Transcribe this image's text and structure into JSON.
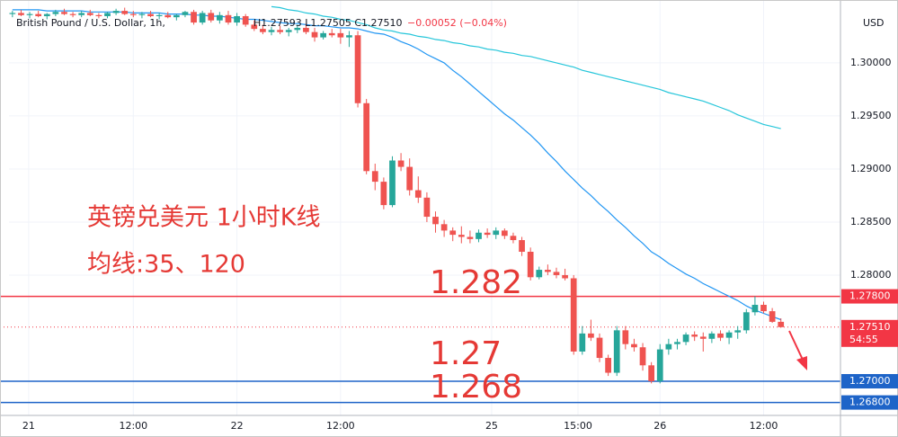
{
  "chart_data": {
    "type": "candlestick",
    "title": "British Pound / U.S. Dollar, 1h,",
    "ohlc_text": "H1.27593  L1.27505  C1.27510",
    "change_text": "−0.00052 (−0.04%)",
    "currency": "USD",
    "annotations": [
      "英镑兑美元 1小时K线",
      "均线:35、120",
      "1.282",
      "1.27",
      "1.268"
    ],
    "up_color": "#26a69a",
    "down_color": "#ef5350",
    "open": [
      1.3046,
      1.3047,
      1.3045,
      1.3046,
      1.3044,
      1.3046,
      1.3048,
      1.3046,
      1.3045,
      1.3047,
      1.3045,
      1.3044,
      1.3047,
      1.3049,
      1.3046,
      1.3045,
      1.3046,
      1.3044,
      1.3045,
      1.3043,
      1.3045,
      1.3048,
      1.3038,
      1.3047,
      1.304,
      1.3045,
      1.3038,
      1.3044,
      1.3036,
      1.3032,
      1.3029,
      1.3031,
      1.3029,
      1.3031,
      1.3033,
      1.3029,
      1.3024,
      1.3028,
      1.3028,
      1.3024,
      1.3026,
      1.2962,
      1.2898,
      1.2888,
      1.2866,
      1.2908,
      1.2902,
      1.288,
      1.2873,
      1.2855,
      1.2848,
      1.2842,
      1.2838,
      1.2836,
      1.2834,
      1.284,
      1.2838,
      1.2842,
      1.2837,
      1.2833,
      1.2822,
      1.2798,
      1.2805,
      1.2803,
      1.28,
      1.2797,
      1.2728,
      1.2745,
      1.2741,
      1.2722,
      1.2708,
      1.2748,
      1.2735,
      1.2732,
      1.2715,
      1.27,
      1.273,
      1.2735,
      1.2737,
      1.2744,
      1.2742,
      1.274,
      1.2745,
      1.2741,
      1.2746,
      1.2748,
      1.2765,
      1.2772,
      1.2766,
      1.2756
    ],
    "high": [
      1.3049,
      1.305,
      1.3048,
      1.3049,
      1.3047,
      1.305,
      1.3051,
      1.3048,
      1.3049,
      1.305,
      1.3047,
      1.3048,
      1.3051,
      1.3052,
      1.3049,
      1.3048,
      1.3049,
      1.3047,
      1.3048,
      1.3046,
      1.3049,
      1.305,
      1.3049,
      1.305,
      1.3048,
      1.3049,
      1.3047,
      1.3046,
      1.304,
      1.3036,
      1.3034,
      1.3035,
      1.3033,
      1.3036,
      1.3037,
      1.3033,
      1.303,
      1.3032,
      1.3032,
      1.303,
      1.303,
      1.2966,
      1.2905,
      1.2892,
      1.2912,
      1.2915,
      1.291,
      1.2893,
      1.2878,
      1.286,
      1.2852,
      1.2845,
      1.2846,
      1.2842,
      1.2843,
      1.2844,
      1.2845,
      1.2844,
      1.284,
      1.2836,
      1.2826,
      1.2808,
      1.281,
      1.2807,
      1.2806,
      1.28,
      1.2752,
      1.2758,
      1.2745,
      1.2725,
      1.2752,
      1.2752,
      1.274,
      1.2736,
      1.2718,
      1.2735,
      1.274,
      1.274,
      1.2746,
      1.2747,
      1.2746,
      1.2747,
      1.2748,
      1.2748,
      1.2752,
      1.2768,
      1.278,
      1.2775,
      1.2769,
      1.27593
    ],
    "low": [
      1.3043,
      1.3044,
      1.3042,
      1.3043,
      1.3041,
      1.3044,
      1.3045,
      1.3043,
      1.3043,
      1.3044,
      1.3042,
      1.3042,
      1.3045,
      1.3045,
      1.3043,
      1.3042,
      1.3043,
      1.3041,
      1.3042,
      1.304,
      1.3043,
      1.3036,
      1.3036,
      1.3038,
      1.3037,
      1.3036,
      1.3035,
      1.3034,
      1.303,
      1.3027,
      1.3026,
      1.3027,
      1.3025,
      1.3028,
      1.3027,
      1.302,
      1.3022,
      1.3024,
      1.3018,
      1.3015,
      1.2958,
      1.2895,
      1.288,
      1.2862,
      1.2864,
      1.2898,
      1.2875,
      1.2868,
      1.285,
      1.284,
      1.2836,
      1.2832,
      1.283,
      1.283,
      1.2831,
      1.2835,
      1.2834,
      1.2834,
      1.283,
      1.2818,
      1.2795,
      1.2796,
      1.28,
      1.2797,
      1.2795,
      1.2725,
      1.2725,
      1.2738,
      1.2718,
      1.2705,
      1.2705,
      1.273,
      1.2728,
      1.271,
      1.2698,
      1.2698,
      1.2725,
      1.273,
      1.2734,
      1.2738,
      1.2728,
      1.2736,
      1.2738,
      1.2735,
      1.274,
      1.2745,
      1.2762,
      1.2764,
      1.2755,
      1.27505
    ],
    "close": [
      1.3047,
      1.3045,
      1.3046,
      1.3044,
      1.3046,
      1.3048,
      1.3046,
      1.3045,
      1.3047,
      1.3045,
      1.3044,
      1.3047,
      1.3049,
      1.3046,
      1.3045,
      1.3046,
      1.3044,
      1.3045,
      1.3043,
      1.3045,
      1.3048,
      1.3038,
      1.3047,
      1.304,
      1.3045,
      1.3038,
      1.3044,
      1.3036,
      1.3032,
      1.3029,
      1.3031,
      1.3029,
      1.3031,
      1.3033,
      1.3029,
      1.3024,
      1.3028,
      1.3026,
      1.3024,
      1.3026,
      1.2962,
      1.2898,
      1.2888,
      1.2866,
      1.2908,
      1.2902,
      1.288,
      1.2873,
      1.2855,
      1.2848,
      1.2842,
      1.2838,
      1.2836,
      1.2834,
      1.284,
      1.2838,
      1.2842,
      1.2837,
      1.2833,
      1.2822,
      1.2798,
      1.2805,
      1.2803,
      1.28,
      1.2797,
      1.2728,
      1.2745,
      1.2741,
      1.2722,
      1.2708,
      1.2748,
      1.2735,
      1.2732,
      1.2715,
      1.27,
      1.273,
      1.2735,
      1.2737,
      1.2744,
      1.2742,
      1.274,
      1.2745,
      1.2741,
      1.2746,
      1.2748,
      1.2765,
      1.2772,
      1.2766,
      1.2756,
      1.2751
    ],
    "series": [
      {
        "color": "#2196f3",
        "values": [
          1.305,
          1.305,
          1.305,
          1.305,
          1.3049,
          1.3049,
          1.3049,
          1.3049,
          1.3049,
          1.3048,
          1.3048,
          1.3048,
          1.3048,
          1.3048,
          1.3047,
          1.3047,
          1.3047,
          1.3047,
          1.3046,
          1.3046,
          1.3046,
          1.3045,
          1.3045,
          1.3044,
          1.3044,
          1.3043,
          1.3042,
          1.3041,
          1.3041,
          1.304,
          1.3039,
          1.3038,
          1.3037,
          1.3037,
          1.3036,
          1.3035,
          1.3035,
          1.3034,
          1.3033,
          1.3033,
          1.3032,
          1.303,
          1.3028,
          1.3027,
          1.3024,
          1.302,
          1.3017,
          1.3013,
          1.3008,
          1.3004,
          1.3,
          1.2993,
          1.2987,
          1.298,
          1.2973,
          1.2966,
          1.2959,
          1.2952,
          1.2946,
          1.2939,
          1.2932,
          1.2924,
          1.2915,
          1.2907,
          1.2898,
          1.289,
          1.2882,
          1.2875,
          1.2867,
          1.286,
          1.2852,
          1.2845,
          1.2837,
          1.283,
          1.2822,
          1.2817,
          1.2811,
          1.2806,
          1.2801,
          1.2797,
          1.2792,
          1.2788,
          1.2784,
          1.278,
          1.2776,
          1.2771,
          1.2767,
          1.2764,
          1.2761,
          1.2758
        ]
      },
      {
        "color": "#26c6da",
        "values": [
          null,
          null,
          null,
          null,
          null,
          null,
          null,
          null,
          null,
          null,
          null,
          null,
          null,
          null,
          null,
          null,
          null,
          null,
          null,
          null,
          null,
          null,
          null,
          null,
          null,
          null,
          null,
          null,
          null,
          null,
          1.3053,
          1.3052,
          1.305,
          1.3049,
          1.3047,
          1.3046,
          1.3044,
          1.3043,
          1.3041,
          1.304,
          1.3038,
          1.3036,
          1.3033,
          1.3031,
          1.303,
          1.3028,
          1.3027,
          1.3025,
          1.3024,
          1.3022,
          1.3021,
          1.3019,
          1.3018,
          1.3016,
          1.3015,
          1.3013,
          1.3012,
          1.301,
          1.3009,
          1.3007,
          1.3006,
          1.3004,
          1.3002,
          1.3,
          1.2998,
          1.2996,
          1.2993,
          1.2991,
          1.2989,
          1.2987,
          1.2985,
          1.2983,
          1.2981,
          1.2979,
          1.2977,
          1.2975,
          1.2972,
          1.297,
          1.2968,
          1.2966,
          1.2964,
          1.2961,
          1.2958,
          1.2955,
          1.2951,
          1.2948,
          1.2945,
          1.2942,
          1.294,
          1.2938
        ]
      }
    ],
    "price_lines": [
      {
        "value": 1.278,
        "label": "1.27800",
        "color": "#f23645"
      },
      {
        "value": 1.27,
        "label": "1.27000",
        "color": "#1e64c8"
      },
      {
        "value": 1.268,
        "label": "1.26800",
        "color": "#1e64c8"
      }
    ],
    "last_price": {
      "value": 1.2751,
      "label": "1.27510",
      "countdown": "54:55",
      "color": "#f23645"
    },
    "xlim": [
      -0.4,
      95.9
    ],
    "ylim": [
      1.26678,
      1.3055
    ],
    "xticks": [
      {
        "value": 1.875,
        "label": "21"
      },
      {
        "value": 14,
        "label": "12:00"
      },
      {
        "value": 26,
        "label": "22"
      },
      {
        "value": 38,
        "label": "12:00"
      },
      {
        "value": 55.5,
        "label": "25"
      },
      {
        "value": 65.5,
        "label": "15:00"
      },
      {
        "value": 75,
        "label": "26"
      },
      {
        "value": 87,
        "label": "12:00"
      }
    ],
    "yticks": [
      {
        "value": 1.28,
        "label": "1.28000"
      },
      {
        "value": 1.285,
        "label": "1.28500"
      },
      {
        "value": 1.29,
        "label": "1.29000"
      },
      {
        "value": 1.295,
        "label": "1.29500"
      },
      {
        "value": 1.3,
        "label": "1.30000"
      }
    ],
    "grid": true
  }
}
